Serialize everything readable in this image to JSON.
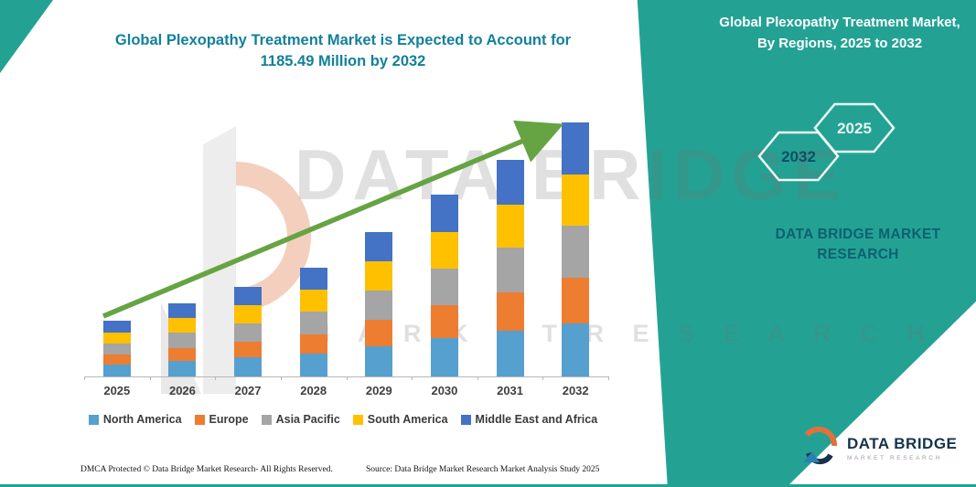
{
  "colors": {
    "teal_band": "#23a294",
    "title_text": "#13809b",
    "arrow_green": "#66a443"
  },
  "chart_data": {
    "type": "bar",
    "stacked": true,
    "title": "Global Plexopathy Treatment Market is Expected to Account for 1185.49 Million by 2032",
    "categories": [
      "2025",
      "2026",
      "2027",
      "2028",
      "2029",
      "2030",
      "2031",
      "2032"
    ],
    "value_unit": "Million",
    "final_year_total": 1185.49,
    "series": [
      {
        "name": "North America",
        "color": "#56a0cf",
        "values": [
          54.6,
          71.7,
          87.8,
          106.6,
          141.5,
          178.2,
          212.2,
          249.0
        ]
      },
      {
        "name": "Europe",
        "color": "#ed7d31",
        "values": [
          46.8,
          61.4,
          75.2,
          91.3,
          121.3,
          152.7,
          181.9,
          213.4
        ]
      },
      {
        "name": "Asia Pacific",
        "color": "#a5a5a5",
        "values": [
          53.3,
          70.0,
          85.7,
          104.0,
          138.1,
          173.9,
          207.2,
          243.0
        ]
      },
      {
        "name": "South America",
        "color": "#ffc000",
        "values": [
          52.0,
          68.3,
          83.6,
          101.5,
          134.7,
          169.7,
          202.1,
          237.1
        ]
      },
      {
        "name": "Middle East and Africa",
        "color": "#4472c4",
        "values": [
          53.3,
          70.0,
          85.7,
          104.0,
          138.1,
          173.9,
          207.2,
          243.0
        ]
      }
    ],
    "totals": [
      260.2,
      341.3,
      418.0,
      507.4,
      673.7,
      848.5,
      1010.7,
      1185.49
    ],
    "ylim": [
      0,
      1185.49
    ],
    "grid": false,
    "legend_position": "bottom",
    "trend_arrow": true
  },
  "ribbon": {
    "title": "Global Plexopathy Treatment Market, By Regions, 2025 to 2032",
    "hex_back_label": "2032",
    "hex_front_label": "2025",
    "brand_text": "DATA BRIDGE MARKET RESEARCH"
  },
  "watermark": {
    "line1": "DATA BRIDGE",
    "line2": "M A R K E T    R E S E A R C H"
  },
  "footer": {
    "dmca": "DMCA Protected © Data Bridge Market Research-  All Rights Reserved.",
    "source": "Source: Data Bridge Market Research  Market Analysis Study 2025"
  },
  "logo": {
    "name": "DATA BRIDGE",
    "sub": "MARKET RESEARCH"
  }
}
